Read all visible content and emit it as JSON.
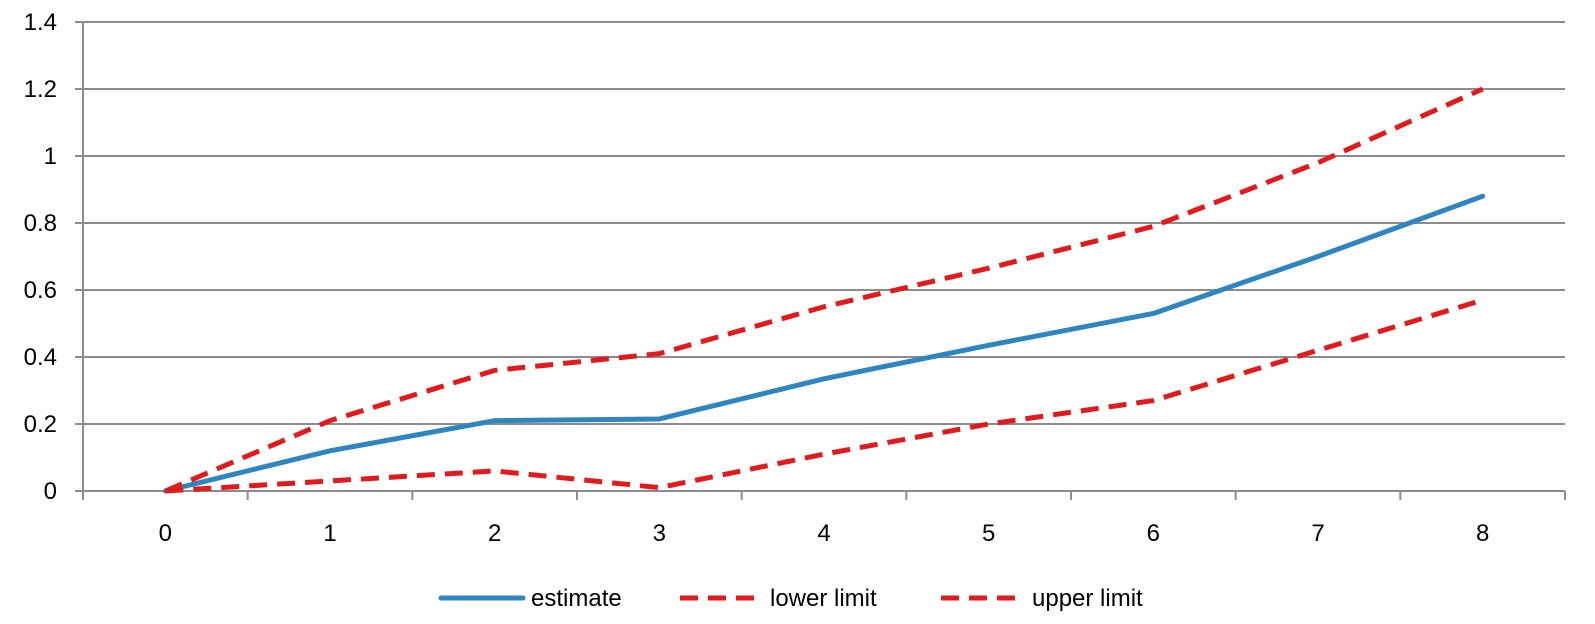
{
  "chart_data": {
    "type": "line",
    "x": [
      0,
      1,
      2,
      3,
      4,
      5,
      6,
      7,
      8
    ],
    "series": [
      {
        "name": "estimate",
        "color": "#2E86C1",
        "style": "solid",
        "values": [
          0,
          0.12,
          0.21,
          0.215,
          0.335,
          0.435,
          0.53,
          0.7,
          0.88
        ]
      },
      {
        "name": "lower limit",
        "color": "#E31A1C",
        "style": "dashed",
        "values": [
          0,
          0.03,
          0.06,
          0.01,
          0.11,
          0.2,
          0.27,
          0.42,
          0.57
        ]
      },
      {
        "name": "upper limit",
        "color": "#E31A1C",
        "style": "dashed",
        "values": [
          0,
          0.21,
          0.36,
          0.41,
          0.55,
          0.665,
          0.79,
          0.98,
          1.2
        ]
      }
    ],
    "yticks": [
      "0",
      "0.2",
      "0.4",
      "0.6",
      "0.8",
      "1",
      "1.2",
      "1.4"
    ],
    "xticks": [
      "0",
      "1",
      "2",
      "3",
      "4",
      "5",
      "6",
      "7",
      "8"
    ],
    "ylim": [
      0,
      1.4
    ],
    "xlim": [
      -0.5,
      8.5
    ],
    "grid": "horizontal",
    "legend_position": "bottom"
  }
}
